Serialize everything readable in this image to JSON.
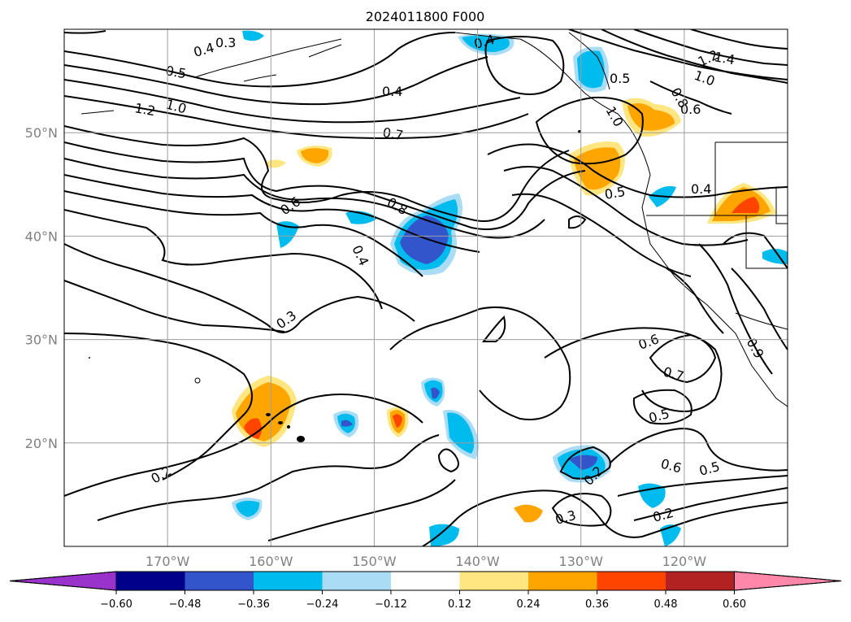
{
  "title": "2024011800 F000",
  "map": {
    "lon_ticks": [
      {
        "value": -170,
        "label": "170°W"
      },
      {
        "value": -160,
        "label": "160°W"
      },
      {
        "value": -150,
        "label": "150°W"
      },
      {
        "value": -140,
        "label": "140°W"
      },
      {
        "value": -130,
        "label": "130°W"
      },
      {
        "value": -120,
        "label": "120°W"
      }
    ],
    "lat_ticks": [
      {
        "value": 20,
        "label": "20°N"
      },
      {
        "value": 30,
        "label": "30°N"
      },
      {
        "value": 40,
        "label": "40°N"
      },
      {
        "value": 50,
        "label": "50°N"
      }
    ],
    "grid": true,
    "extent_lon": [
      -180,
      -110
    ],
    "extent_lat": [
      10,
      60
    ]
  },
  "colorbar": {
    "ticks": [
      "−0.60",
      "−0.48",
      "−0.36",
      "−0.24",
      "−0.12",
      "0.12",
      "0.24",
      "0.36",
      "0.48",
      "0.60"
    ],
    "under_color": "#9933cc",
    "over_color": "#ff88aa",
    "colors": [
      "#00008b",
      "#3355cc",
      "#00bbee",
      "#aaddf5",
      "#ffffff",
      "#ffe680",
      "#ffa500",
      "#ff4400",
      "#b22222"
    ]
  },
  "contour_labels": [
    {
      "text": "0.3"
    },
    {
      "text": "0.4"
    },
    {
      "text": "0.5"
    },
    {
      "text": "1.2"
    },
    {
      "text": "1.0"
    },
    {
      "text": "0.4"
    },
    {
      "text": "0.7"
    },
    {
      "text": "0.4"
    },
    {
      "text": "0.5"
    },
    {
      "text": "1.2"
    },
    {
      "text": "1.4"
    },
    {
      "text": "1.0"
    },
    {
      "text": "0.8"
    },
    {
      "text": "0.6"
    },
    {
      "text": "1.0"
    },
    {
      "text": "0.5"
    },
    {
      "text": "0.4"
    },
    {
      "text": "0.6"
    },
    {
      "text": "0.8"
    },
    {
      "text": "0.4"
    },
    {
      "text": "0.3"
    },
    {
      "text": "0.6"
    },
    {
      "text": "0.7"
    },
    {
      "text": "0.9"
    },
    {
      "text": "0.5"
    },
    {
      "text": "0.6"
    },
    {
      "text": "0.5"
    },
    {
      "text": "0.2"
    },
    {
      "text": "0.2"
    },
    {
      "text": "0.3"
    },
    {
      "text": "0.2"
    }
  ]
}
